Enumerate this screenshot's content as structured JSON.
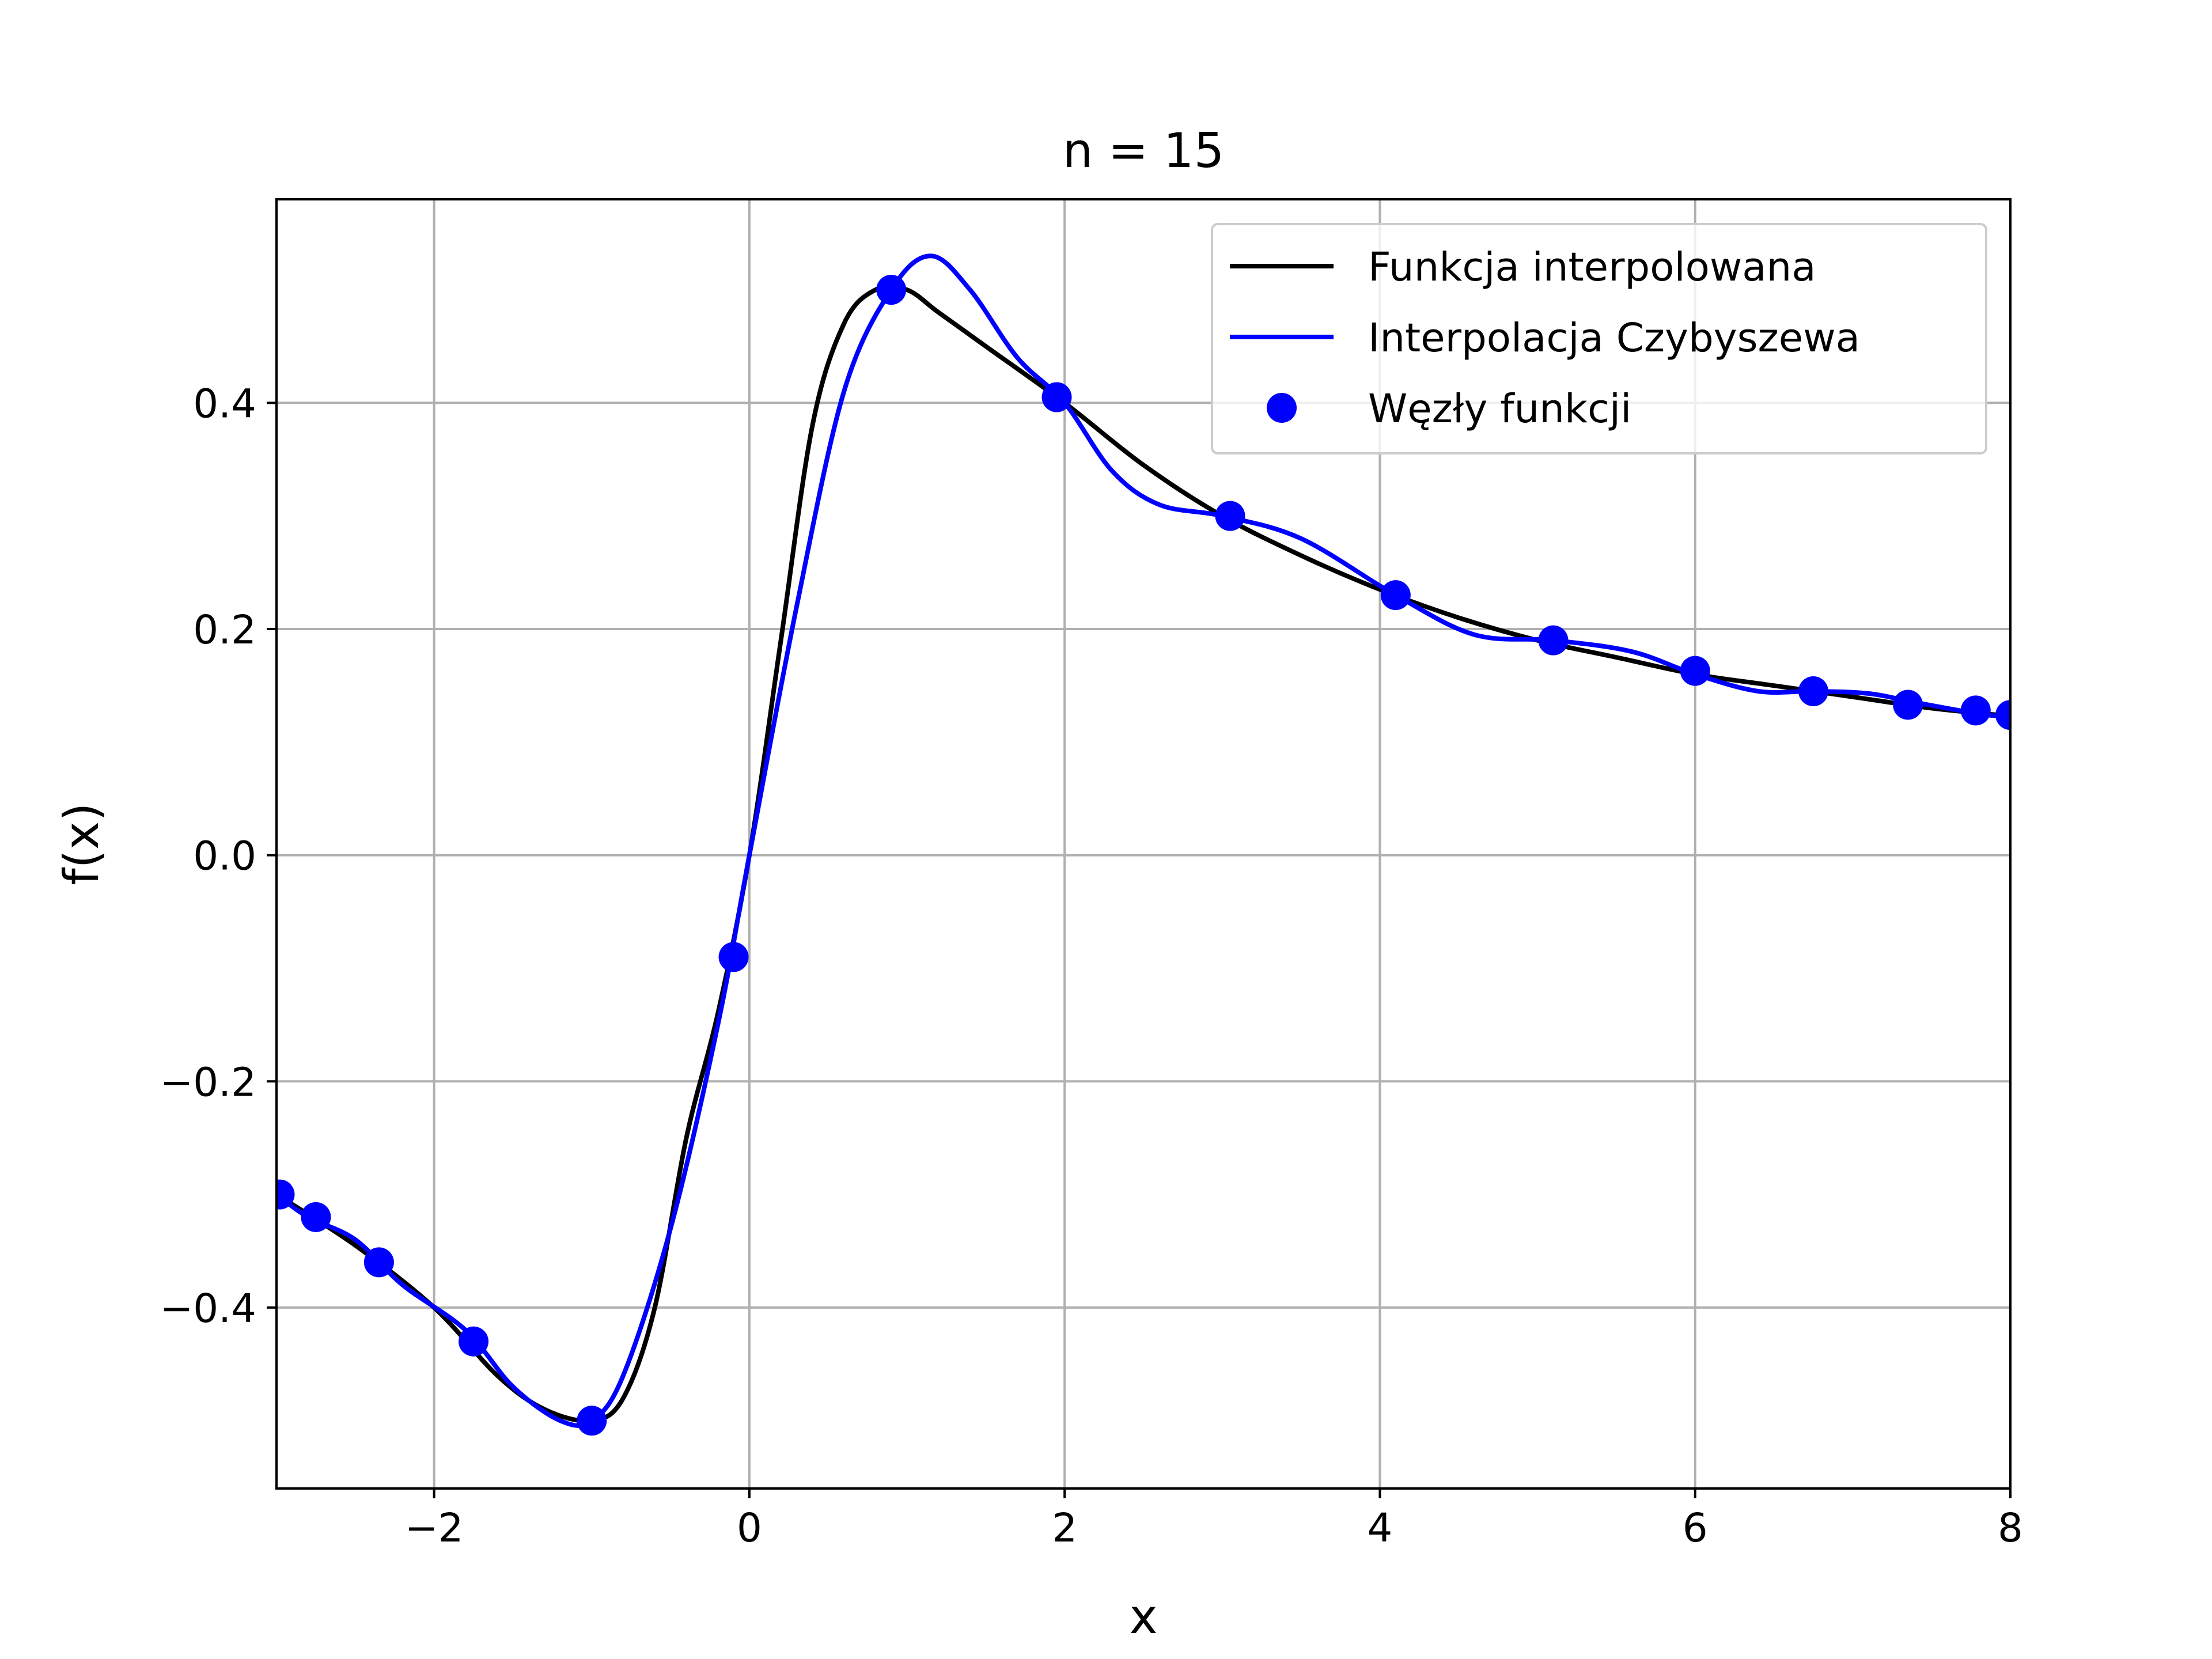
{
  "chart_data": {
    "type": "line",
    "title": "n = 15",
    "xlabel": "x",
    "ylabel": "f(x)",
    "xlim": [
      -3,
      8
    ],
    "ylim": [
      -0.56,
      0.58
    ],
    "grid": true,
    "legend_position": "top-right",
    "x_ticks": [
      -2,
      0,
      2,
      4,
      6,
      8
    ],
    "x_tick_labels": [
      "−2",
      "0",
      "2",
      "4",
      "6",
      "8"
    ],
    "y_ticks": [
      -0.4,
      -0.2,
      0.0,
      0.2,
      0.4
    ],
    "y_tick_labels": [
      "−0.4",
      "−0.2",
      "0.0",
      "0.2",
      "0.4"
    ],
    "colors": {
      "function": "#000000",
      "interpolation": "#0000ff",
      "nodes": "#0000ff",
      "grid": "#b0b0b0"
    },
    "series": [
      {
        "name": "Funkcja interpolowana",
        "kind": "line",
        "color": "#000000",
        "x": [
          -3.0,
          -2.5,
          -2.0,
          -1.6,
          -1.3,
          -1.0,
          -0.8,
          -0.6,
          -0.4,
          -0.2,
          0.0,
          0.2,
          0.4,
          0.6,
          0.8,
          1.0,
          1.2,
          1.5,
          2.0,
          2.5,
          3.0,
          3.5,
          4.0,
          4.5,
          5.0,
          5.5,
          6.0,
          6.5,
          7.0,
          7.5,
          8.0
        ],
        "y": [
          -0.3,
          -0.345,
          -0.4,
          -0.46,
          -0.49,
          -0.5,
          -0.48,
          -0.4,
          -0.25,
          -0.14,
          0.0,
          0.19,
          0.38,
          0.47,
          0.5,
          0.5,
          0.48,
          0.45,
          0.4,
          0.345,
          0.3,
          0.265,
          0.235,
          0.21,
          0.19,
          0.175,
          0.16,
          0.15,
          0.14,
          0.13,
          0.123
        ]
      },
      {
        "name": "Interpolacja Czybyszewa",
        "kind": "line",
        "color": "#0000ff",
        "x": [
          -3.0,
          -2.8,
          -2.5,
          -2.2,
          -1.8,
          -1.5,
          -1.2,
          -1.0,
          -0.8,
          -0.5,
          -0.2,
          0.0,
          0.3,
          0.6,
          0.9,
          1.15,
          1.4,
          1.7,
          2.0,
          2.3,
          2.6,
          3.0,
          3.5,
          4.1,
          4.6,
          5.1,
          5.6,
          6.0,
          6.4,
          6.75,
          7.1,
          7.4,
          7.8,
          8.0
        ],
        "y": [
          -0.3,
          -0.32,
          -0.34,
          -0.38,
          -0.42,
          -0.47,
          -0.5,
          -0.5,
          -0.46,
          -0.33,
          -0.15,
          0.0,
          0.22,
          0.41,
          0.5,
          0.53,
          0.5,
          0.44,
          0.4,
          0.34,
          0.31,
          0.3,
          0.28,
          0.23,
          0.195,
          0.19,
          0.18,
          0.16,
          0.145,
          0.145,
          0.143,
          0.135,
          0.125,
          0.122
        ]
      },
      {
        "name": "Węzły funkcji",
        "kind": "scatter",
        "color": "#0000ff",
        "x": [
          -2.98,
          -2.75,
          -2.35,
          -1.75,
          -1.0,
          -0.1,
          0.9,
          1.95,
          3.05,
          4.1,
          5.1,
          6.0,
          6.75,
          7.35,
          7.78,
          8.0
        ],
        "y": [
          -0.3,
          -0.32,
          -0.36,
          -0.43,
          -0.5,
          -0.09,
          0.5,
          0.405,
          0.3,
          0.23,
          0.19,
          0.163,
          0.145,
          0.133,
          0.128,
          0.124
        ]
      }
    ]
  }
}
